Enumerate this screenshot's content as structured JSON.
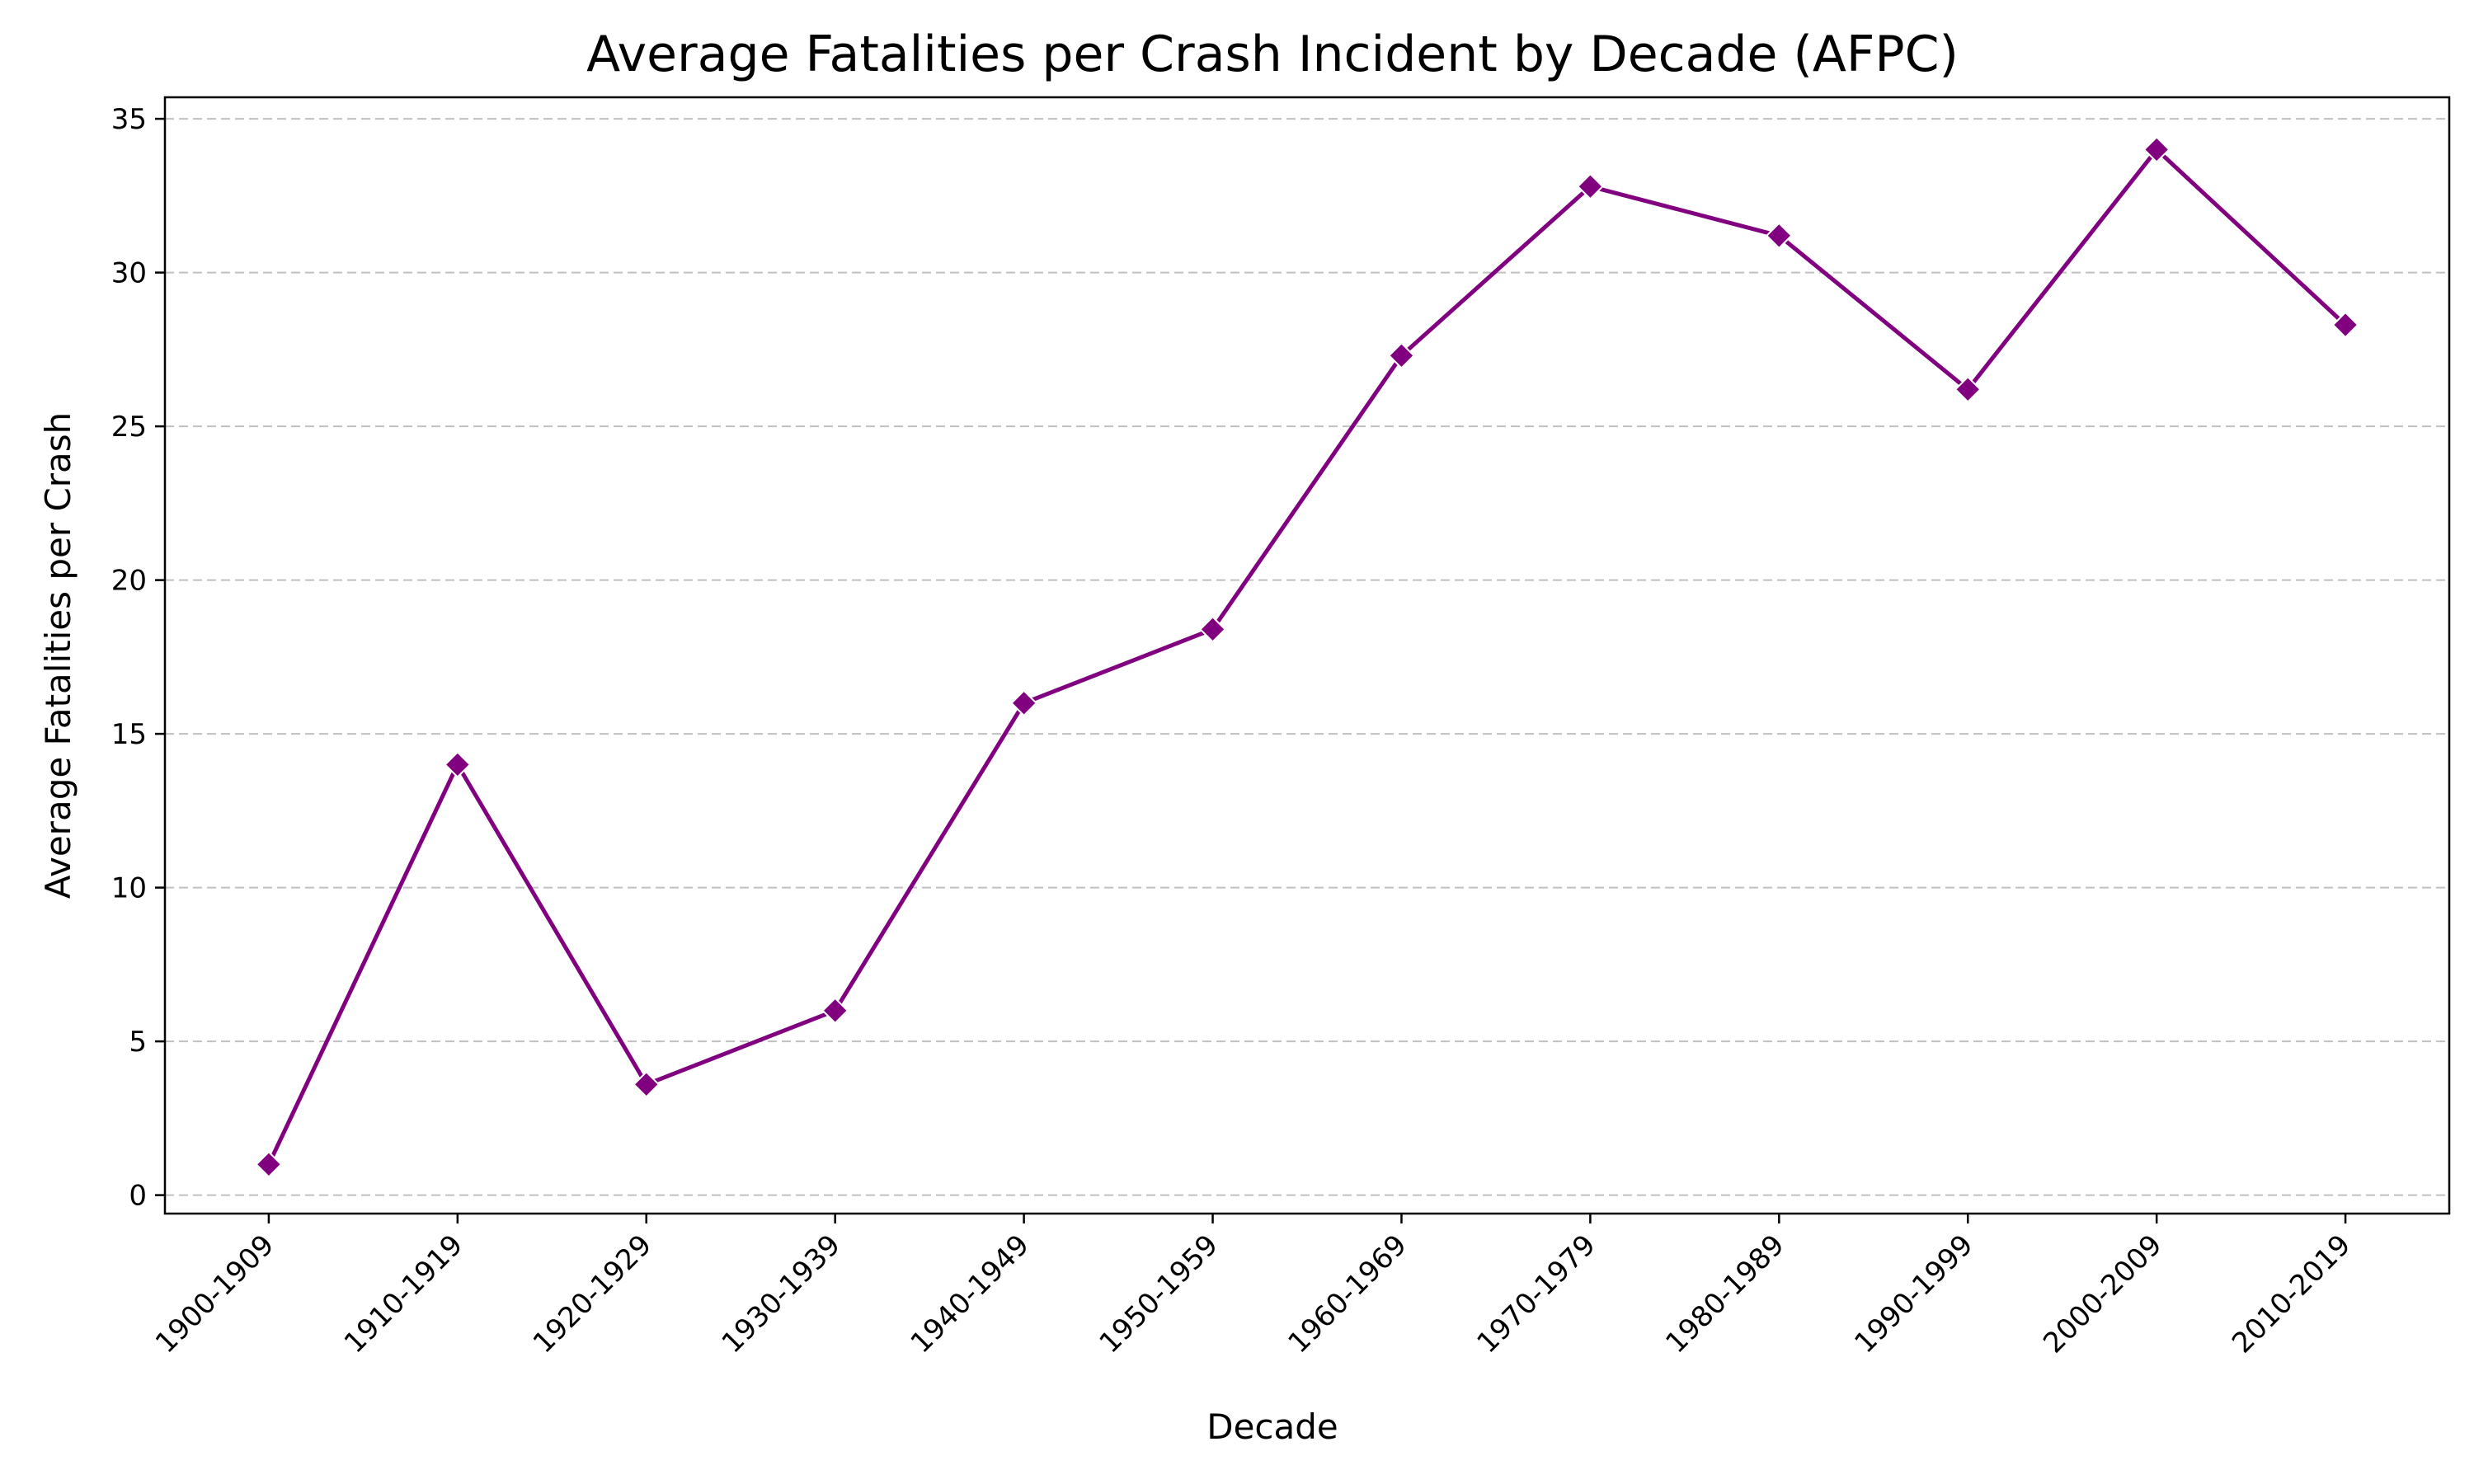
{
  "chart_data": {
    "type": "line",
    "title": "Average Fatalities per Crash Incident by Decade (AFPC)",
    "xlabel": "Decade",
    "ylabel": "Average Fatalities per Crash",
    "categories": [
      "1900-1909",
      "1910-1919",
      "1920-1929",
      "1930-1939",
      "1940-1949",
      "1950-1959",
      "1960-1969",
      "1970-1979",
      "1980-1989",
      "1990-1999",
      "2000-2009",
      "2010-2019"
    ],
    "series": [
      {
        "values": [
          1.0,
          14.0,
          3.6,
          6.0,
          16.0,
          18.4,
          27.3,
          32.8,
          31.2,
          26.2,
          34.0,
          28.3
        ],
        "color": "#800080",
        "marker": "diamond"
      }
    ],
    "ylim": [
      -0.6,
      35.7
    ],
    "yticks": [
      0,
      5,
      10,
      15,
      20,
      25,
      30,
      35
    ],
    "grid": "y-dashed",
    "legend": "none"
  }
}
